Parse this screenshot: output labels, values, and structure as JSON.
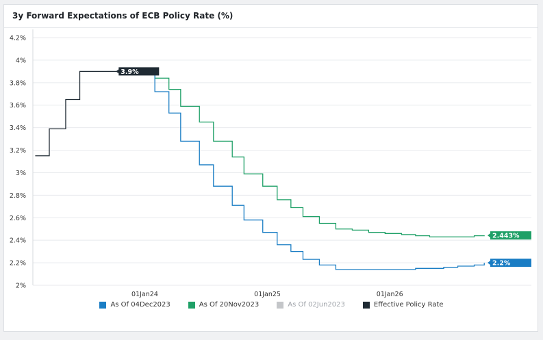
{
  "chart_data": {
    "type": "line",
    "step": true,
    "title": "3y Forward Expectations of ECB Policy Rate (%)",
    "xlabel": "",
    "ylabel": "",
    "ylim": [
      2.0,
      4.2
    ],
    "yticks": [
      2.0,
      2.2,
      2.4,
      2.6,
      2.8,
      3.0,
      3.2,
      3.4,
      3.6,
      3.8,
      4.0,
      4.2
    ],
    "ytick_labels": [
      "2%",
      "2.2%",
      "2.4%",
      "2.6%",
      "2.8%",
      "3%",
      "3.2%",
      "3.4%",
      "3.6%",
      "3.8%",
      "4%",
      "4.2%"
    ],
    "xlim": [
      "2023-02-01",
      "2026-11-01"
    ],
    "xticks": [
      "2024-01-01",
      "2025-01-01",
      "2026-01-01"
    ],
    "xtick_labels": [
      "01Jan24",
      "01Jan25",
      "01Jan26"
    ],
    "grid": "horizontal",
    "legend_position": "bottom",
    "series": [
      {
        "name": "As Of 04Dec2023",
        "color": "#1a7dc4",
        "visible": true,
        "end_label": "2.2%",
        "x": [
          "2023-10-15",
          "2023-12-13",
          "2024-01-31",
          "2024-03-13",
          "2024-04-17",
          "2024-06-12",
          "2024-07-24",
          "2024-09-18",
          "2024-10-23",
          "2024-12-18",
          "2025-01-30",
          "2025-03-12",
          "2025-04-17",
          "2025-06-05",
          "2025-07-24",
          "2025-09-11",
          "2025-10-30",
          "2025-12-18",
          "2026-02-05",
          "2026-03-19",
          "2026-04-30",
          "2026-06-11",
          "2026-07-23",
          "2026-09-10",
          "2026-10-10"
        ],
        "values": [
          3.91,
          3.88,
          3.72,
          3.53,
          3.28,
          3.07,
          2.88,
          2.71,
          2.58,
          2.47,
          2.36,
          2.3,
          2.23,
          2.18,
          2.14,
          2.14,
          2.14,
          2.14,
          2.14,
          2.15,
          2.15,
          2.16,
          2.17,
          2.18,
          2.2
        ]
      },
      {
        "name": "As Of 20Nov2023",
        "color": "#1fa067",
        "visible": true,
        "end_label": "2.443%",
        "x": [
          "2023-10-15",
          "2023-12-13",
          "2024-01-31",
          "2024-03-13",
          "2024-04-17",
          "2024-06-12",
          "2024-07-24",
          "2024-09-18",
          "2024-10-23",
          "2024-12-18",
          "2025-01-30",
          "2025-03-12",
          "2025-04-17",
          "2025-06-05",
          "2025-07-24",
          "2025-09-11",
          "2025-10-30",
          "2025-12-18",
          "2026-02-05",
          "2026-03-19",
          "2026-04-30",
          "2026-06-11",
          "2026-07-23",
          "2026-09-10",
          "2026-10-10"
        ],
        "values": [
          3.91,
          3.9,
          3.84,
          3.74,
          3.59,
          3.45,
          3.28,
          3.14,
          2.99,
          2.88,
          2.76,
          2.69,
          2.61,
          2.55,
          2.5,
          2.49,
          2.47,
          2.46,
          2.45,
          2.44,
          2.43,
          2.43,
          2.43,
          2.44,
          2.443
        ]
      },
      {
        "name": "As Of 02Jun2023",
        "color": "#c4c6c9",
        "visible": false,
        "end_label": "",
        "x": [],
        "values": []
      },
      {
        "name": "Effective Policy Rate",
        "color": "#1f2a33",
        "visible": true,
        "end_label": "3.9%",
        "end_label_x": "2023-10-15",
        "x": [
          "2023-02-08",
          "2023-03-22",
          "2023-05-10",
          "2023-06-21",
          "2023-08-02",
          "2023-12-31"
        ],
        "values": [
          3.15,
          3.39,
          3.65,
          3.9,
          3.9,
          3.9
        ]
      }
    ]
  }
}
